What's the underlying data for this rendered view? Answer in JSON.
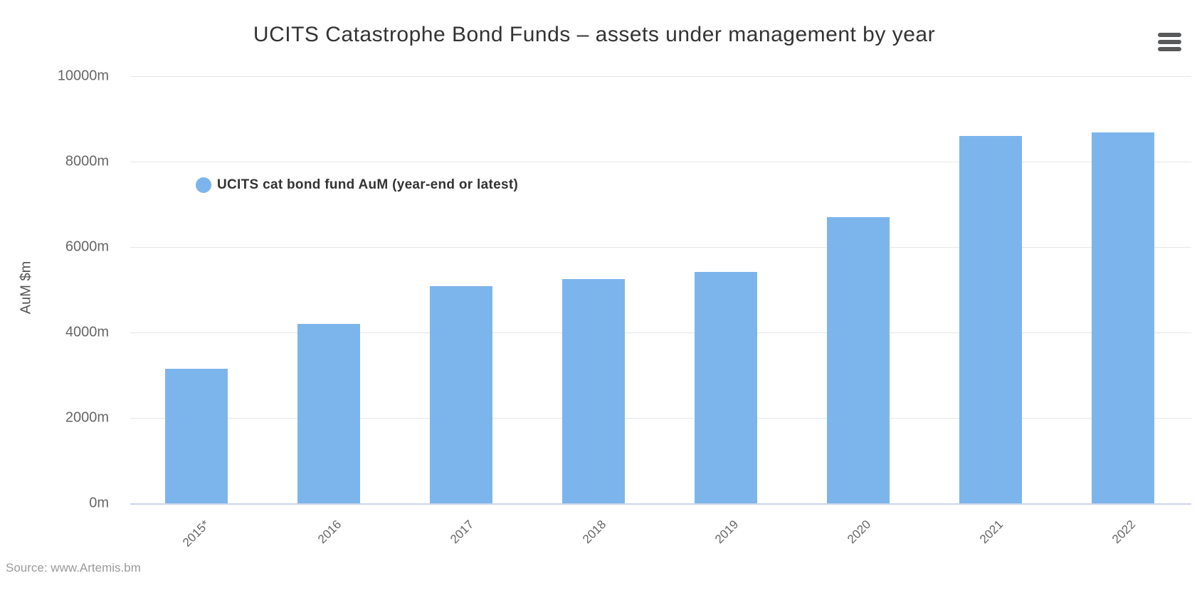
{
  "chart": {
    "title": "UCITS Catastrophe Bond Funds – assets under management by year",
    "y_axis_title": "AuM $m",
    "legend_label": "UCITS cat bond fund AuM (year-end or latest)",
    "source": "Source: www.Artemis.bm",
    "menu_icon": "hamburger-menu-icon",
    "colors": {
      "bar": "#7cb5ec",
      "gridline": "#e6e6e6",
      "axis_line": "#ccd6eb",
      "title_text": "#333333",
      "axis_text": "#666666",
      "source_text": "#9a9a9a",
      "menu_icon": "#58595b"
    }
  },
  "chart_data": {
    "type": "bar",
    "title": "UCITS Catastrophe Bond Funds – assets under management by year",
    "categories": [
      "2015*",
      "2016",
      "2017",
      "2018",
      "2019",
      "2020",
      "2021",
      "2022"
    ],
    "values": [
      3150,
      4200,
      5080,
      5250,
      5420,
      6700,
      8600,
      8680
    ],
    "series_name": "UCITS cat bond fund AuM (year-end or latest)",
    "xlabel": "",
    "ylabel": "AuM $m",
    "ylim": [
      0,
      10000
    ],
    "y_tick_values": [
      0,
      2000,
      4000,
      6000,
      8000,
      10000
    ],
    "y_tick_labels": [
      "0m",
      "2000m",
      "4000m",
      "6000m",
      "8000m",
      "10000m"
    ],
    "grid": true,
    "legend_position": "floating-left-inside-plot",
    "source": "Source: www.Artemis.bm"
  }
}
